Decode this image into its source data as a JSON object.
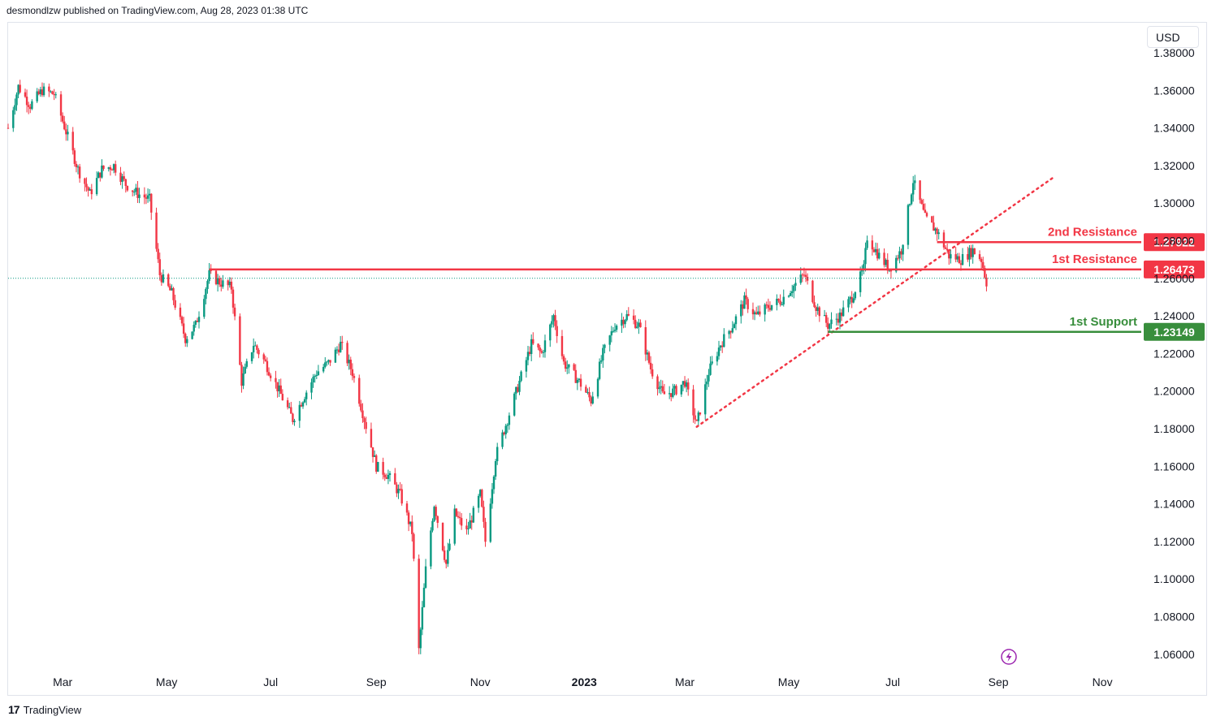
{
  "header": {
    "publisher_text": "desmondlzw published on TradingView.com, Aug 28, 2023 01:38 UTC"
  },
  "currency_button": {
    "label": "USD"
  },
  "footer": {
    "brand": "TradingView",
    "logo": "17"
  },
  "flash_icon": {
    "name": "lightning-icon",
    "color": "#9c27b0"
  },
  "colors": {
    "up": "#089981",
    "down": "#f23645",
    "resistance": "#f23645",
    "support": "#388e3c",
    "trend": "#f23645"
  },
  "chart_data": {
    "type": "candlestick",
    "title": "",
    "ylim": [
      1.05,
      1.39
    ],
    "y_ticks": [
      "1.38000",
      "1.36000",
      "1.34000",
      "1.32000",
      "1.30000",
      "1.28000",
      "1.26000",
      "1.24000",
      "1.22000",
      "1.20000",
      "1.18000",
      "1.16000",
      "1.14000",
      "1.12000",
      "1.10000",
      "1.08000",
      "1.06000"
    ],
    "y_tick_values": [
      1.38,
      1.36,
      1.34,
      1.32,
      1.3,
      1.28,
      1.26,
      1.24,
      1.22,
      1.2,
      1.18,
      1.16,
      1.14,
      1.12,
      1.1,
      1.08,
      1.06
    ],
    "x_ticks": [
      {
        "label": "Mar",
        "date": "2022-03-01",
        "bold": false
      },
      {
        "label": "May",
        "date": "2022-05-01",
        "bold": false
      },
      {
        "label": "Jul",
        "date": "2022-07-01",
        "bold": false
      },
      {
        "label": "Sep",
        "date": "2022-09-01",
        "bold": false
      },
      {
        "label": "Nov",
        "date": "2022-11-01",
        "bold": false
      },
      {
        "label": "2023",
        "date": "2023-01-01",
        "bold": true
      },
      {
        "label": "Mar",
        "date": "2023-03-01",
        "bold": false
      },
      {
        "label": "May",
        "date": "2023-05-01",
        "bold": false
      },
      {
        "label": "Jul",
        "date": "2023-07-01",
        "bold": false
      },
      {
        "label": "Sep",
        "date": "2023-09-01",
        "bold": false
      },
      {
        "label": "Nov",
        "date": "2023-11-01",
        "bold": false
      }
    ],
    "x_range": [
      "2022-01-28",
      "2023-11-20"
    ],
    "price_path": [
      [
        "2022-01-28",
        1.34
      ],
      [
        "2022-02-03",
        1.362
      ],
      [
        "2022-02-10",
        1.352
      ],
      [
        "2022-02-17",
        1.36
      ],
      [
        "2022-02-24",
        1.358
      ],
      [
        "2022-03-03",
        1.338
      ],
      [
        "2022-03-10",
        1.318
      ],
      [
        "2022-03-17",
        1.305
      ],
      [
        "2022-03-24",
        1.318
      ],
      [
        "2022-03-31",
        1.32
      ],
      [
        "2022-04-07",
        1.31
      ],
      [
        "2022-04-14",
        1.305
      ],
      [
        "2022-04-21",
        1.302
      ],
      [
        "2022-04-27",
        1.262
      ],
      [
        "2022-05-04",
        1.252
      ],
      [
        "2022-05-12",
        1.228
      ],
      [
        "2022-05-18",
        1.235
      ],
      [
        "2022-05-26",
        1.262
      ],
      [
        "2022-06-01",
        1.258
      ],
      [
        "2022-06-08",
        1.255
      ],
      [
        "2022-06-14",
        1.205
      ],
      [
        "2022-06-21",
        1.225
      ],
      [
        "2022-06-28",
        1.215
      ],
      [
        "2022-07-06",
        1.2
      ],
      [
        "2022-07-14",
        1.185
      ],
      [
        "2022-07-21",
        1.198
      ],
      [
        "2022-07-28",
        1.21
      ],
      [
        "2022-08-04",
        1.215
      ],
      [
        "2022-08-11",
        1.225
      ],
      [
        "2022-08-18",
        1.21
      ],
      [
        "2022-08-25",
        1.185
      ],
      [
        "2022-09-01",
        1.16
      ],
      [
        "2022-09-08",
        1.155
      ],
      [
        "2022-09-15",
        1.145
      ],
      [
        "2022-09-22",
        1.125
      ],
      [
        "2022-09-26",
        1.062
      ],
      [
        "2022-09-30",
        1.105
      ],
      [
        "2022-10-05",
        1.14
      ],
      [
        "2022-10-12",
        1.108
      ],
      [
        "2022-10-17",
        1.135
      ],
      [
        "2022-10-24",
        1.125
      ],
      [
        "2022-11-01",
        1.145
      ],
      [
        "2022-11-04",
        1.12
      ],
      [
        "2022-11-10",
        1.165
      ],
      [
        "2022-11-17",
        1.185
      ],
      [
        "2022-11-24",
        1.205
      ],
      [
        "2022-12-01",
        1.225
      ],
      [
        "2022-12-07",
        1.22
      ],
      [
        "2022-12-14",
        1.24
      ],
      [
        "2022-12-20",
        1.215
      ],
      [
        "2022-12-29",
        1.205
      ],
      [
        "2023-01-05",
        1.195
      ],
      [
        "2023-01-12",
        1.22
      ],
      [
        "2023-01-19",
        1.235
      ],
      [
        "2023-01-26",
        1.24
      ],
      [
        "2023-02-02",
        1.235
      ],
      [
        "2023-02-09",
        1.212
      ],
      [
        "2023-02-16",
        1.198
      ],
      [
        "2023-02-23",
        1.2
      ],
      [
        "2023-03-01",
        1.205
      ],
      [
        "2023-03-08",
        1.182
      ],
      [
        "2023-03-15",
        1.21
      ],
      [
        "2023-03-22",
        1.225
      ],
      [
        "2023-03-29",
        1.235
      ],
      [
        "2023-04-05",
        1.248
      ],
      [
        "2023-04-12",
        1.24
      ],
      [
        "2023-04-19",
        1.245
      ],
      [
        "2023-04-26",
        1.248
      ],
      [
        "2023-05-03",
        1.255
      ],
      [
        "2023-05-10",
        1.262
      ],
      [
        "2023-05-17",
        1.245
      ],
      [
        "2023-05-24",
        1.235
      ],
      [
        "2023-05-31",
        1.24
      ],
      [
        "2023-06-07",
        1.25
      ],
      [
        "2023-06-14",
        1.265
      ],
      [
        "2023-06-16",
        1.282
      ],
      [
        "2023-06-23",
        1.272
      ],
      [
        "2023-06-29",
        1.265
      ],
      [
        "2023-07-06",
        1.275
      ],
      [
        "2023-07-13",
        1.312
      ],
      [
        "2023-07-20",
        1.292
      ],
      [
        "2023-07-27",
        1.285
      ],
      [
        "2023-08-03",
        1.272
      ],
      [
        "2023-08-10",
        1.27
      ],
      [
        "2023-08-17",
        1.275
      ],
      [
        "2023-08-22",
        1.27
      ],
      [
        "2023-08-25",
        1.258
      ]
    ],
    "levels": [
      {
        "label": "2nd Resistance",
        "value": 1.27922,
        "value_text": "1.27922",
        "color": "#f23645",
        "start": "2023-07-27"
      },
      {
        "label": "1st Resistance",
        "value": 1.26473,
        "value_text": "1.26473",
        "color": "#f23645",
        "start": "2022-05-26"
      },
      {
        "label": "1st Support",
        "value": 1.23149,
        "value_text": "1.23149",
        "color": "#388e3c",
        "start": "2023-05-24"
      }
    ],
    "trendline": {
      "start": [
        "2023-03-08",
        1.181
      ],
      "end": [
        "2023-10-03",
        1.3135
      ],
      "style": "dotted"
    },
    "current_price": 1.26
  }
}
